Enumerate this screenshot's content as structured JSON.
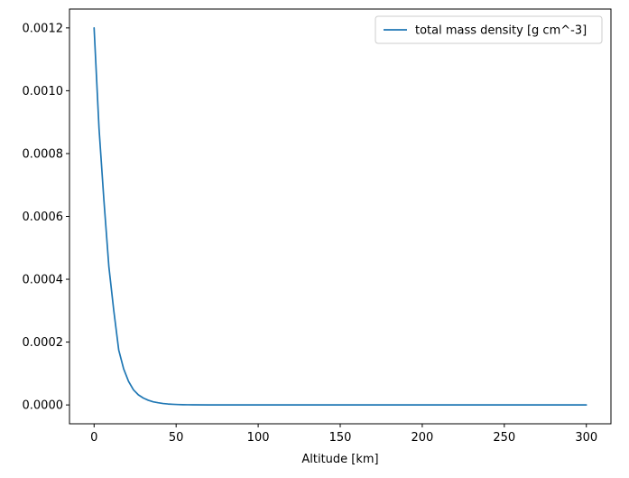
{
  "chart_data": {
    "type": "line",
    "title": "",
    "xlabel": "Altitude [km]",
    "ylabel": "",
    "xlim": [
      -15,
      315
    ],
    "ylim": [
      -6e-05,
      0.00126
    ],
    "xticks": [
      0,
      50,
      100,
      150,
      200,
      250,
      300
    ],
    "xtick_labels": [
      "0",
      "50",
      "100",
      "150",
      "200",
      "250",
      "300"
    ],
    "yticks": [
      0,
      0.0002,
      0.0004,
      0.0006,
      0.0008,
      0.001,
      0.0012
    ],
    "ytick_labels": [
      "0.0000",
      "0.0002",
      "0.0004",
      "0.0006",
      "0.0008",
      "0.0010",
      "0.0012"
    ],
    "grid": false,
    "legend_position": "top-right",
    "series": [
      {
        "name": "total mass density [g cm^-3]",
        "color": "#1f77b4",
        "x": [
          0,
          3,
          6,
          9,
          12,
          15,
          18,
          21,
          24,
          27,
          30,
          33,
          36,
          39,
          42,
          45,
          48,
          51,
          54,
          57,
          60,
          70,
          80,
          90,
          100,
          125,
          150,
          175,
          200,
          225,
          250,
          275,
          300
        ],
        "y": [
          0.0012,
          0.00088,
          0.00065,
          0.00044,
          0.0003,
          0.000175,
          0.000115,
          7.5e-05,
          4.8e-05,
          3.2e-05,
          2.2e-05,
          1.5e-05,
          1e-05,
          7e-06,
          4.5e-06,
          3e-06,
          2e-06,
          1.3e-06,
          8e-07,
          5e-07,
          3e-07,
          1e-07,
          3e-08,
          1e-08,
          3e-09,
          1e-10,
          0.0,
          0.0,
          0.0,
          0.0,
          0.0,
          0.0,
          0.0
        ]
      }
    ]
  }
}
